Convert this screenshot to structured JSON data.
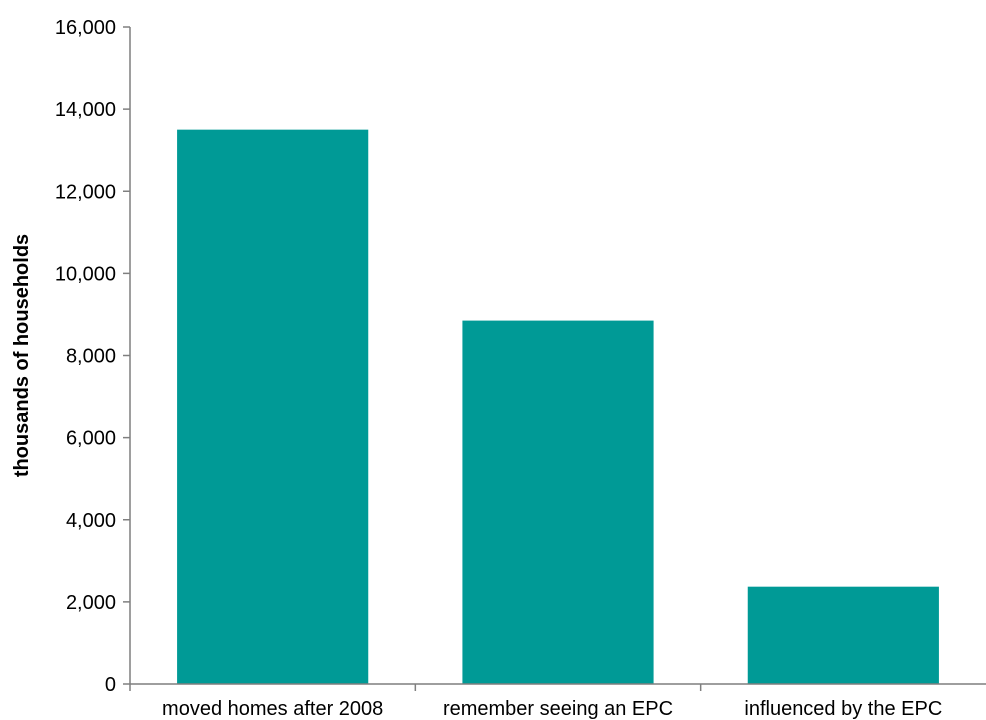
{
  "chart_data": {
    "type": "bar",
    "categories": [
      "moved homes after 2008",
      "remember seeing an EPC",
      "influenced by the EPC"
    ],
    "values": [
      13500,
      8850,
      2370
    ],
    "title": "",
    "xlabel": "",
    "ylabel": "thousands of households",
    "ylim": [
      0,
      16000
    ],
    "yticks": [
      0,
      2000,
      4000,
      6000,
      8000,
      10000,
      12000,
      14000,
      16000
    ],
    "ytick_labels": [
      "0",
      "2,000",
      "4,000",
      "6,000",
      "8,000",
      "10,000",
      "12,000",
      "14,000",
      "16,000"
    ],
    "grid": false,
    "legend": "none",
    "bar_color": "#009A96",
    "axis_color": "#7F7F7F"
  }
}
